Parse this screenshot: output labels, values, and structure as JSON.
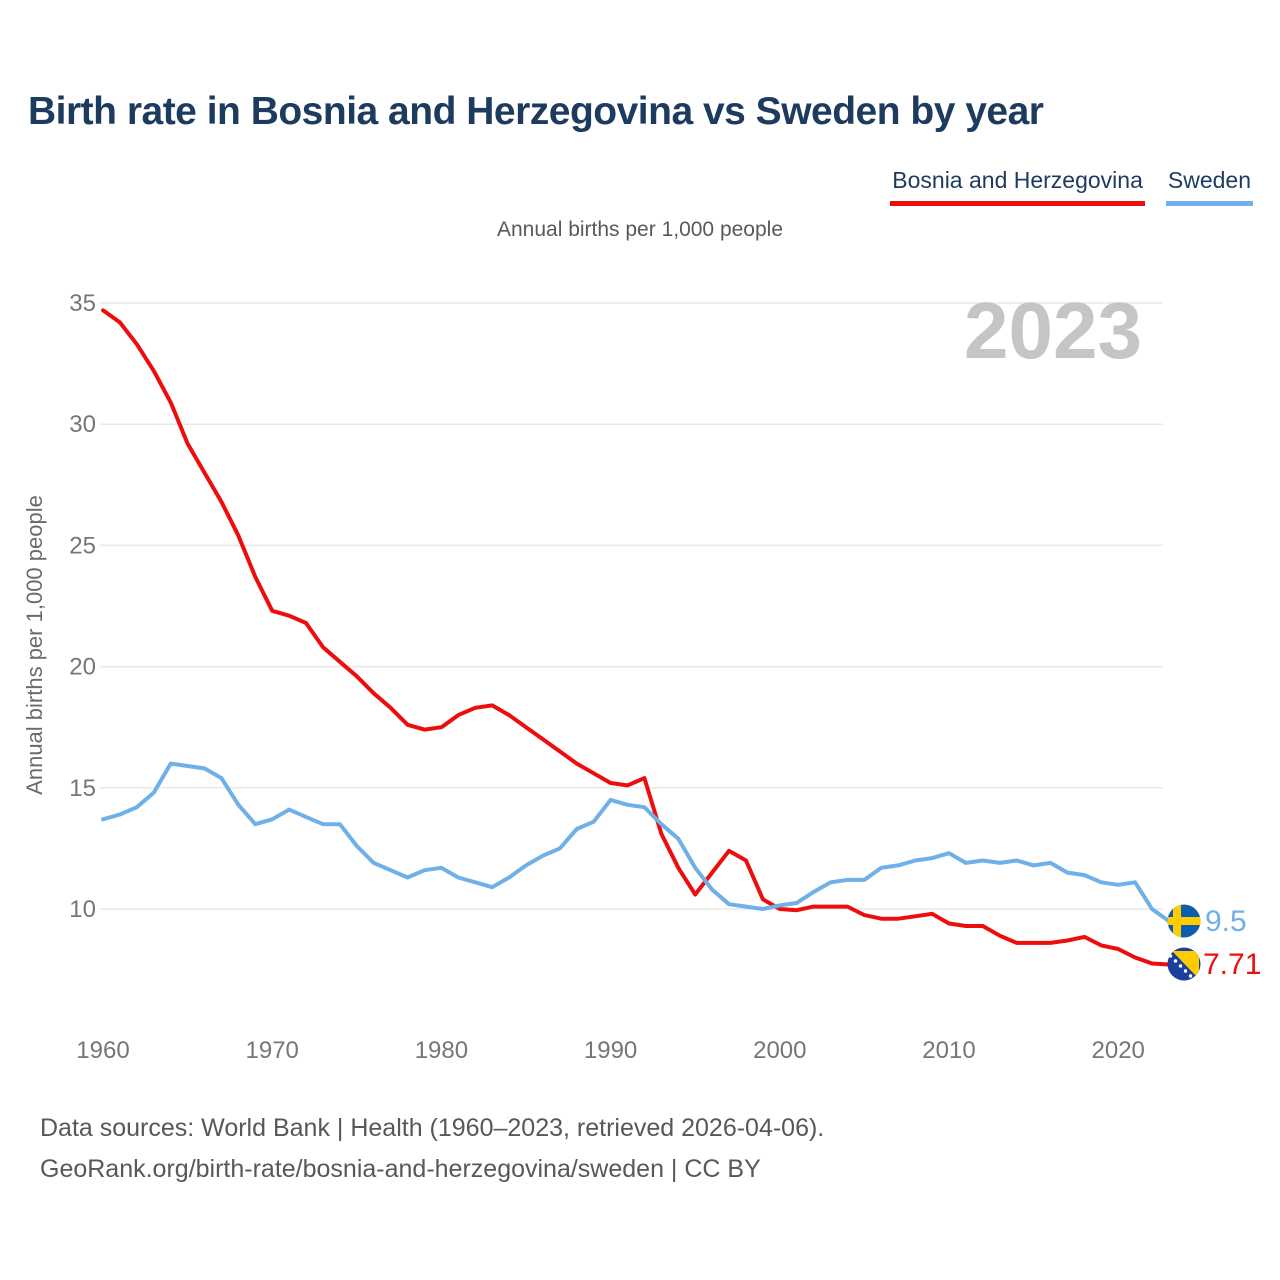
{
  "header": {
    "title": "Birth rate in Bosnia and Herzegovina vs Sweden by year"
  },
  "legend": {
    "items": [
      {
        "label": "Bosnia and Herzegovina",
        "color": "#ee0d0d"
      },
      {
        "label": "Sweden",
        "color": "#6fb0e8"
      }
    ]
  },
  "chart": {
    "subtitle": "Annual births per 1,000 people",
    "y_axis_title": "Annual births per 1,000 people",
    "watermark": "2023"
  },
  "end_labels": {
    "sweden": "9.5",
    "bosnia": "7.71"
  },
  "footer": {
    "line1": "Data sources: World Bank | Health (1960–2023, retrieved 2026-04-06).",
    "line2": "GeoRank.org/birth-rate/bosnia-and-herzegovina/sweden | CC BY"
  },
  "chart_data": {
    "type": "line",
    "title": "Birth rate in Bosnia and Herzegovina vs Sweden by year",
    "subtitle": "Annual births per 1,000 people",
    "ylabel": "Annual births per 1,000 people",
    "watermark": "2023",
    "grid": "horizontal",
    "legend_position": "top-right",
    "ylim": [
      7.5,
      35.5
    ],
    "y_ticks": [
      10,
      15,
      20,
      25,
      30,
      35
    ],
    "x_ticks": [
      1960,
      1970,
      1980,
      1990,
      2000,
      2010,
      2020
    ],
    "x": [
      1960,
      1961,
      1962,
      1963,
      1964,
      1965,
      1966,
      1967,
      1968,
      1969,
      1970,
      1971,
      1972,
      1973,
      1974,
      1975,
      1976,
      1977,
      1978,
      1979,
      1980,
      1981,
      1982,
      1983,
      1984,
      1985,
      1986,
      1987,
      1988,
      1989,
      1990,
      1991,
      1992,
      1993,
      1994,
      1995,
      1996,
      1997,
      1998,
      1999,
      2000,
      2001,
      2002,
      2003,
      2004,
      2005,
      2006,
      2007,
      2008,
      2009,
      2010,
      2011,
      2012,
      2013,
      2014,
      2015,
      2016,
      2017,
      2018,
      2019,
      2020,
      2021,
      2022,
      2023
    ],
    "series": [
      {
        "name": "Bosnia and Herzegovina",
        "color": "#ee0d0d",
        "end_label": "7.71",
        "end_value": 7.71,
        "flag": "bosnia",
        "values": [
          34.7,
          34.2,
          33.3,
          32.2,
          30.9,
          29.2,
          28.0,
          26.8,
          25.4,
          23.7,
          22.3,
          22.1,
          21.8,
          20.8,
          20.2,
          19.6,
          18.9,
          18.3,
          17.6,
          17.4,
          17.5,
          18.0,
          18.3,
          18.4,
          18.0,
          17.5,
          17.0,
          16.5,
          16.0,
          15.6,
          15.2,
          15.1,
          15.4,
          13.1,
          11.7,
          10.6,
          11.5,
          12.4,
          12.0,
          10.4,
          10.0,
          9.95,
          10.1,
          10.1,
          10.1,
          9.75,
          9.6,
          9.6,
          9.7,
          9.8,
          9.4,
          9.3,
          9.3,
          8.9,
          8.6,
          8.6,
          8.6,
          8.7,
          8.85,
          8.5,
          8.35,
          8.0,
          7.75,
          7.71
        ]
      },
      {
        "name": "Sweden",
        "color": "#6fb0e8",
        "end_label": "9.5",
        "end_value": 9.5,
        "flag": "sweden",
        "values": [
          13.7,
          13.9,
          14.2,
          14.8,
          16.0,
          15.9,
          15.8,
          15.4,
          14.3,
          13.5,
          13.7,
          14.1,
          13.8,
          13.5,
          13.5,
          12.6,
          11.9,
          11.6,
          11.3,
          11.6,
          11.7,
          11.3,
          11.1,
          10.9,
          11.3,
          11.8,
          12.2,
          12.5,
          13.3,
          13.6,
          14.5,
          14.3,
          14.2,
          13.5,
          12.9,
          11.7,
          10.8,
          10.2,
          10.1,
          10.0,
          10.15,
          10.25,
          10.7,
          11.1,
          11.2,
          11.2,
          11.7,
          11.8,
          12.0,
          12.1,
          12.3,
          11.9,
          12.0,
          11.9,
          12.0,
          11.8,
          11.9,
          11.5,
          11.4,
          11.1,
          11.0,
          11.1,
          10.0,
          9.5
        ]
      }
    ],
    "flag_colors": {
      "sweden_blue": "#0d5eaf",
      "sweden_yellow": "#fecc00",
      "bosnia_blue": "#1c3e9c",
      "bosnia_yellow": "#fecb00",
      "bosnia_star": "#ffffff"
    },
    "style": {
      "gridline_color": "#e9e9e9",
      "tick_color": "#767676",
      "watermark_color": "#c5c5c5"
    }
  }
}
